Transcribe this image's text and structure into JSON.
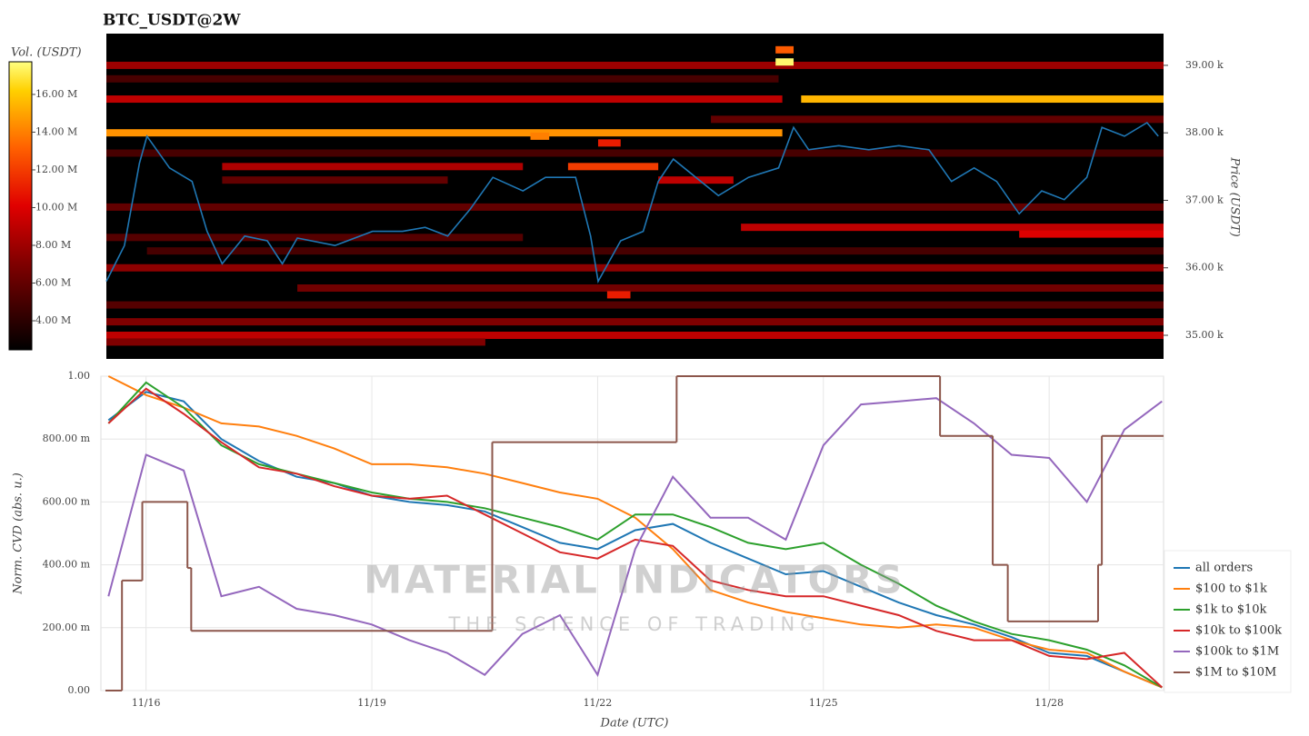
{
  "chart_data": [
    {
      "type": "heatmap",
      "title": "BTC_USDT@2W",
      "ylabel": "Price (USDT)",
      "colorbar_label": "Vol. (USDT)",
      "xlim": [
        15.46,
        29.52
      ],
      "ylim": [
        34650,
        39470
      ],
      "yticks": [
        {
          "value": 35000,
          "label": "35.00 k"
        },
        {
          "value": 36000,
          "label": "36.00 k"
        },
        {
          "value": 37000,
          "label": "37.00 k"
        },
        {
          "value": 38000,
          "label": "38.00 k"
        },
        {
          "value": 39000,
          "label": "39.00 k"
        }
      ],
      "colorbar_lim": [
        2460000,
        17730000
      ],
      "colorbar_ticks": [
        {
          "value": 4000000,
          "label": "4.00 M"
        },
        {
          "value": 6000000,
          "label": "6.00 M"
        },
        {
          "value": 8000000,
          "label": "8.00 M"
        },
        {
          "value": 10000000,
          "label": "10.00 M"
        },
        {
          "value": 12000000,
          "label": "12.00 M"
        },
        {
          "value": 14000000,
          "label": "14.00 M"
        },
        {
          "value": 16000000,
          "label": "16.00 M"
        }
      ],
      "heatmap": [
        {
          "price": 39000,
          "start": 15.46,
          "end": 29.52,
          "volume": 8000000
        },
        {
          "price": 38800,
          "start": 15.46,
          "end": 24.4,
          "volume": 5000000
        },
        {
          "price": 38500,
          "start": 15.46,
          "end": 24.45,
          "volume": 9000000
        },
        {
          "price": 38500,
          "start": 24.7,
          "end": 29.52,
          "volume": 15500000
        },
        {
          "price": 38200,
          "start": 23.5,
          "end": 29.52,
          "volume": 6000000
        },
        {
          "price": 38000,
          "start": 15.46,
          "end": 24.45,
          "volume": 14500000
        },
        {
          "price": 37950,
          "start": 21.1,
          "end": 21.35,
          "volume": 14000000
        },
        {
          "price": 37850,
          "start": 22.0,
          "end": 22.3,
          "volume": 11000000
        },
        {
          "price": 37700,
          "start": 15.46,
          "end": 29.52,
          "volume": 5000000
        },
        {
          "price": 37500,
          "start": 17.0,
          "end": 21.0,
          "volume": 8500000
        },
        {
          "price": 37500,
          "start": 21.6,
          "end": 22.8,
          "volume": 12000000
        },
        {
          "price": 37300,
          "start": 22.8,
          "end": 23.8,
          "volume": 9000000
        },
        {
          "price": 37300,
          "start": 17.0,
          "end": 20.0,
          "volume": 6000000
        },
        {
          "price": 36900,
          "start": 15.46,
          "end": 29.52,
          "volume": 6000000
        },
        {
          "price": 36600,
          "start": 23.9,
          "end": 29.52,
          "volume": 9000000
        },
        {
          "price": 36500,
          "start": 27.6,
          "end": 29.52,
          "volume": 10000000
        },
        {
          "price": 36450,
          "start": 15.46,
          "end": 21.0,
          "volume": 5500000
        },
        {
          "price": 36250,
          "start": 16.0,
          "end": 29.52,
          "volume": 5000000
        },
        {
          "price": 36000,
          "start": 15.46,
          "end": 29.52,
          "volume": 7500000
        },
        {
          "price": 35700,
          "start": 18.0,
          "end": 29.52,
          "volume": 6500000
        },
        {
          "price": 35600,
          "start": 22.12,
          "end": 22.43,
          "volume": 11000000
        },
        {
          "price": 35450,
          "start": 15.46,
          "end": 29.52,
          "volume": 5500000
        },
        {
          "price": 35200,
          "start": 15.46,
          "end": 29.52,
          "volume": 7000000
        },
        {
          "price": 35000,
          "start": 15.46,
          "end": 29.52,
          "volume": 9000000
        },
        {
          "price": 34900,
          "start": 15.46,
          "end": 20.5,
          "volume": 7000000
        },
        {
          "price": 39230,
          "start": 24.36,
          "end": 24.6,
          "volume": 13000000
        },
        {
          "price": 39050,
          "start": 24.36,
          "end": 24.6,
          "volume": 17500000
        }
      ],
      "line": {
        "color": "#1f77b4",
        "x": [
          15.46,
          15.7,
          15.9,
          16.0,
          16.3,
          16.6,
          16.8,
          17.0,
          17.3,
          17.6,
          17.8,
          18.0,
          18.5,
          19.0,
          19.4,
          19.7,
          20.0,
          20.3,
          20.6,
          21.0,
          21.3,
          21.7,
          21.9,
          22.0,
          22.3,
          22.6,
          22.8,
          23.0,
          23.3,
          23.6,
          24.0,
          24.4,
          24.6,
          24.8,
          25.2,
          25.6,
          26.0,
          26.4,
          26.7,
          27.0,
          27.3,
          27.6,
          27.9,
          28.2,
          28.5,
          28.7,
          29.0,
          29.3,
          29.45
        ],
        "values": [
          35800,
          36330,
          37550,
          37950,
          37480,
          37280,
          36540,
          36060,
          36470,
          36400,
          36060,
          36440,
          36330,
          36540,
          36540,
          36600,
          36470,
          36870,
          37340,
          37140,
          37340,
          37340,
          36470,
          35800,
          36400,
          36540,
          37280,
          37610,
          37340,
          37070,
          37340,
          37480,
          38080,
          37750,
          37810,
          37750,
          37810,
          37750,
          37280,
          37480,
          37280,
          36800,
          37140,
          37010,
          37340,
          38080,
          37950,
          38150,
          37950
        ]
      }
    },
    {
      "type": "line",
      "xlabel": "Date (UTC)",
      "ylabel": "Norm. CVD (abs. u.)",
      "grid": true,
      "legend": "lower right",
      "xlim": [
        15.4,
        29.52
      ],
      "ylim": [
        0,
        1
      ],
      "xticks": [
        {
          "value": 16,
          "label": "11/16"
        },
        {
          "value": 19,
          "label": "11/19"
        },
        {
          "value": 22,
          "label": "11/22"
        },
        {
          "value": 25,
          "label": "11/25"
        },
        {
          "value": 28,
          "label": "11/28"
        }
      ],
      "yticks": [
        {
          "value": 0,
          "label": "0.00"
        },
        {
          "value": 0.2,
          "label": "200.00 m"
        },
        {
          "value": 0.4,
          "label": "400.00 m"
        },
        {
          "value": 0.6,
          "label": "600.00 m"
        },
        {
          "value": 0.8,
          "label": "800.00 m"
        },
        {
          "value": 1,
          "label": "1.00"
        }
      ],
      "x": [
        15.5,
        16,
        16.5,
        17,
        17.5,
        18,
        18.5,
        19,
        19.5,
        20,
        20.5,
        21,
        21.5,
        22,
        22.5,
        23,
        23.5,
        24,
        24.5,
        25,
        25.5,
        26,
        26.5,
        27,
        27.5,
        28,
        28.5,
        29,
        29.5
      ],
      "series": [
        {
          "name": "all orders",
          "color": "#1f77b4",
          "values": [
            0.86,
            0.95,
            0.92,
            0.8,
            0.73,
            0.68,
            0.66,
            0.62,
            0.6,
            0.59,
            0.57,
            0.52,
            0.47,
            0.45,
            0.51,
            0.53,
            0.47,
            0.42,
            0.37,
            0.38,
            0.33,
            0.28,
            0.24,
            0.21,
            0.17,
            0.12,
            0.11,
            0.06,
            0.01
          ]
        },
        {
          "name": "$100 to $1k",
          "color": "#ff7f0e",
          "values": [
            1.0,
            0.94,
            0.9,
            0.85,
            0.84,
            0.81,
            0.77,
            0.72,
            0.72,
            0.71,
            0.69,
            0.66,
            0.63,
            0.61,
            0.55,
            0.45,
            0.32,
            0.28,
            0.25,
            0.23,
            0.21,
            0.2,
            0.21,
            0.2,
            0.16,
            0.13,
            0.12,
            0.06,
            0.01
          ]
        },
        {
          "name": "$1k to $10k",
          "color": "#2ca02c",
          "values": [
            0.85,
            0.98,
            0.9,
            0.78,
            0.72,
            0.69,
            0.66,
            0.63,
            0.61,
            0.6,
            0.58,
            0.55,
            0.52,
            0.48,
            0.56,
            0.56,
            0.52,
            0.47,
            0.45,
            0.47,
            0.4,
            0.34,
            0.27,
            0.22,
            0.18,
            0.16,
            0.13,
            0.08,
            0.01
          ]
        },
        {
          "name": "$10k to $100k",
          "color": "#d62728",
          "values": [
            0.85,
            0.96,
            0.88,
            0.79,
            0.71,
            0.69,
            0.65,
            0.62,
            0.61,
            0.62,
            0.56,
            0.5,
            0.44,
            0.42,
            0.48,
            0.46,
            0.35,
            0.32,
            0.3,
            0.3,
            0.27,
            0.24,
            0.19,
            0.16,
            0.16,
            0.11,
            0.1,
            0.12,
            0.01
          ]
        },
        {
          "name": "$100k to $1M",
          "color": "#9467bd",
          "values": [
            0.3,
            0.75,
            0.7,
            0.3,
            0.33,
            0.26,
            0.24,
            0.21,
            0.16,
            0.12,
            0.05,
            0.18,
            0.24,
            0.05,
            0.45,
            0.68,
            0.55,
            0.55,
            0.48,
            0.78,
            0.91,
            0.92,
            0.93,
            0.85,
            0.75,
            0.74,
            0.6,
            0.83,
            0.92
          ]
        },
        {
          "name": "$1M to $10M",
          "color": "#8c564b",
          "step": "post",
          "x": [
            15.46,
            15.68,
            15.95,
            16.55,
            16.6,
            20.6,
            23.05,
            26.55,
            27.25,
            27.45,
            28.65,
            28.7
          ],
          "values": [
            0,
            0.35,
            0.6,
            0.39,
            0.19,
            0.79,
            1.0,
            0.81,
            0.4,
            0.22,
            0.4,
            0.81
          ]
        }
      ]
    }
  ],
  "watermark": {
    "title": "MATERIAL INDICATORS",
    "subtitle": "THE SCIENCE OF TRADING"
  }
}
